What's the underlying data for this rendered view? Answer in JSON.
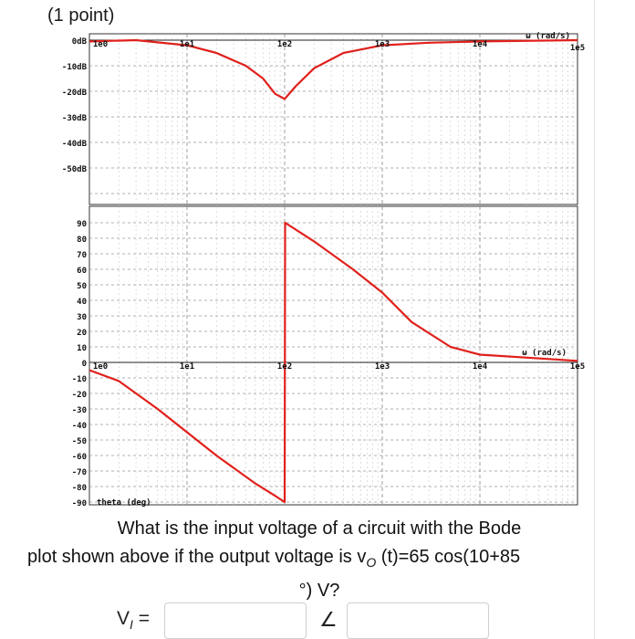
{
  "header": {
    "points": "(1 point)"
  },
  "magnitude_plot": {
    "axis_label": "ω (rad/s)",
    "decade_labels": [
      "1e0",
      "1e1",
      "1e2",
      "1e3",
      "1e4",
      "1e5"
    ],
    "y_tick_labels": [
      "0dB",
      "-10dB",
      "-20dB",
      "-30dB",
      "-40dB",
      "-50dB"
    ]
  },
  "phase_plot": {
    "axis_label": "ω (rad/s)",
    "y_label": "theta (deg)",
    "decade_labels": [
      "1e0",
      "1e1",
      "1e2",
      "1e3",
      "1e4",
      "1e5"
    ],
    "y_tick_labels": [
      "90",
      "80",
      "70",
      "60",
      "50",
      "40",
      "30",
      "20",
      "10",
      "0",
      "-10",
      "-20",
      "-30",
      "-40",
      "-50",
      "-60",
      "-70",
      "-80",
      "-90"
    ]
  },
  "chart_data": [
    {
      "type": "line",
      "xlabel": "ω (rad/s)",
      "ylabel": "",
      "x_scale": "log",
      "xlim": [
        1,
        100000
      ],
      "ylim": [
        -60,
        0
      ],
      "grid": true,
      "series": [
        {
          "color": "#e0201b",
          "x": [
            1,
            3,
            10,
            20,
            40,
            60,
            80,
            100,
            130,
            200,
            400,
            1000,
            3000,
            10000,
            100000
          ],
          "y": [
            -0.5,
            0,
            -2,
            -5,
            -10,
            -15,
            -21,
            -23,
            -18,
            -11,
            -5,
            -2,
            -1,
            -0.5,
            0
          ]
        }
      ]
    },
    {
      "type": "line",
      "xlabel": "ω (rad/s)",
      "ylabel": "theta (deg)",
      "x_scale": "log",
      "xlim": [
        1,
        100000
      ],
      "ylim": [
        -90,
        90
      ],
      "grid": true,
      "series": [
        {
          "color": "#e0201b",
          "x": [
            1,
            2,
            5,
            10,
            20,
            50,
            80,
            100,
            101,
            200,
            500,
            1000,
            2000,
            5000,
            10000,
            100000
          ],
          "y": [
            -5,
            -12,
            -30,
            -45,
            -60,
            -78,
            -86,
            -90,
            90,
            78,
            60,
            45,
            26,
            10,
            5,
            1
          ]
        }
      ]
    }
  ],
  "question": {
    "line1": "What is the input voltage of a circuit with the Bode",
    "line2_prefix": "plot shown above if the output voltage is v",
    "line2_sub": "O",
    "line2_suffix": " (t)=65 cos(10+85",
    "line3": "°) V?"
  },
  "answer": {
    "label": "V",
    "label_sub": "I",
    "label_suffix": " =",
    "angle_symbol": "∠"
  }
}
